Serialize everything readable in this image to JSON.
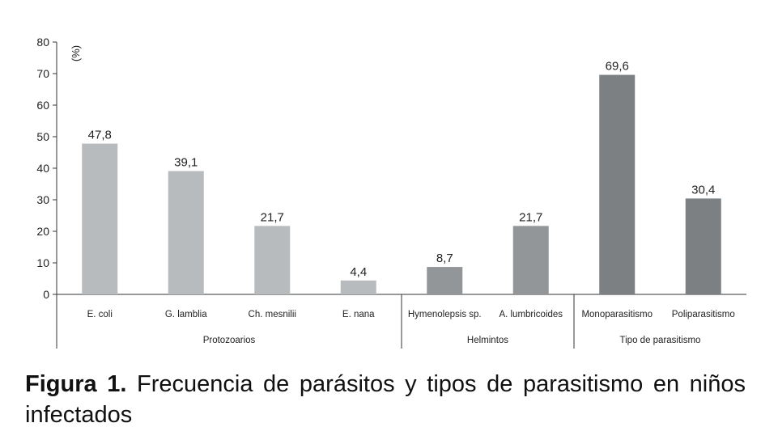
{
  "chart_data": {
    "type": "bar",
    "ylabel": "(%)",
    "ylim": [
      0,
      80
    ],
    "yticks": [
      0,
      10,
      20,
      30,
      40,
      50,
      60,
      70,
      80
    ],
    "grid": false,
    "categories": [
      "E. coli",
      "G. lamblia",
      "Ch. mesnilii",
      "E. nana",
      "Hymenolepsis sp.",
      "A. lumbricoides",
      "Monoparasitismo",
      "Poliparasitismo"
    ],
    "values": [
      47.8,
      39.1,
      21.7,
      4.4,
      8.7,
      21.7,
      69.6,
      30.4
    ],
    "value_labels": [
      "47,8",
      "39,1",
      "21,7",
      "4,4",
      "8,7",
      "21,7",
      "69,6",
      "30,4"
    ],
    "groups": [
      {
        "label": "Protozoarios",
        "count": 4,
        "color": "#b8bbbe"
      },
      {
        "label": "Helmintos",
        "count": 2,
        "color": "#939699"
      },
      {
        "label": "Tipo de parasitismo",
        "count": 2,
        "color": "#7d8083"
      }
    ]
  },
  "caption": {
    "label": "Figura 1.",
    "text": "Frecuencia de parásitos y tipos de parasitismo en niños infectados"
  }
}
